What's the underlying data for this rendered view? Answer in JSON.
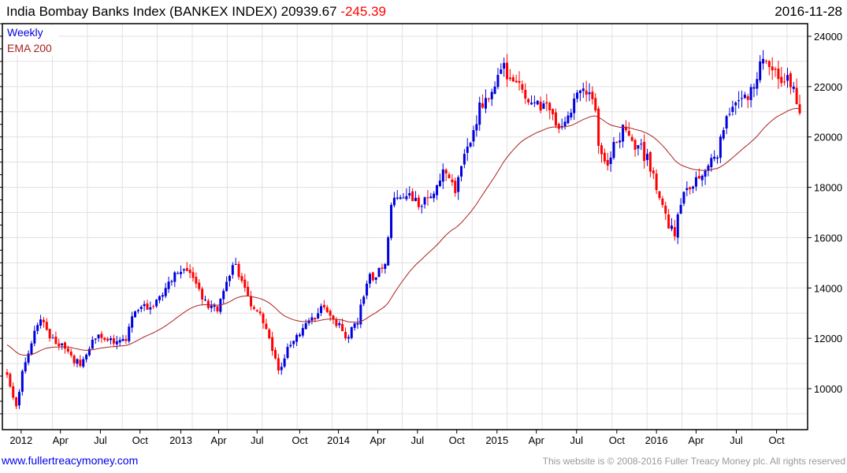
{
  "header": {
    "title": "India Bombay Banks Index (BANKEX INDEX) 20939.67",
    "change": "-245.39",
    "date": "2016-11-28"
  },
  "footer": {
    "site": "www.fullertreacymoney.com",
    "copyright": "This website is © 2008-2016 Fuller Treacy Money plc. All rights reserved"
  },
  "colors": {
    "up": "#0000dd",
    "down": "#ff0000",
    "ema": "#aa2222",
    "grid": "#e0e0e0"
  },
  "chart_data": {
    "type": "candlestick",
    "title": "India Bombay Banks Index (BANKEX INDEX)",
    "frequency_label": "Weekly",
    "legend": [
      {
        "name": "Weekly",
        "color": "#0000dd"
      },
      {
        "name": "EMA 200",
        "color": "#aa2222"
      }
    ],
    "legend_placement": "top-left",
    "ylim": [
      8500,
      24500
    ],
    "yticks": [
      10000,
      12000,
      14000,
      16000,
      18000,
      20000,
      22000,
      24000
    ],
    "xtick_labels": [
      "2012",
      "Apr",
      "Jul",
      "Oct",
      "2013",
      "Apr",
      "Jul",
      "Oct",
      "2014",
      "Apr",
      "Jul",
      "Oct",
      "2015",
      "Apr",
      "Jul",
      "Oct",
      "2016",
      "Apr",
      "Jul",
      "Oct"
    ],
    "xtick_weeks": [
      4.6,
      17.5,
      30.6,
      43.6,
      57,
      69.4,
      82,
      96,
      108.7,
      121.6,
      134.6,
      147.5,
      160.7,
      173.6,
      186.8,
      200,
      213,
      226,
      239.2,
      252.4
    ],
    "total_weeks": 261,
    "ema_period_days": 200,
    "ema_start": 11800,
    "close_keypoints": [
      [
        0,
        10550
      ],
      [
        3,
        9300
      ],
      [
        5,
        10700
      ],
      [
        9,
        12300
      ],
      [
        11,
        12750
      ],
      [
        14,
        12000
      ],
      [
        18,
        11800
      ],
      [
        24,
        10900
      ],
      [
        26,
        11350
      ],
      [
        30,
        12150
      ],
      [
        34,
        12000
      ],
      [
        39,
        11900
      ],
      [
        42,
        13070
      ],
      [
        47,
        13230
      ],
      [
        52,
        14000
      ],
      [
        57,
        14640
      ],
      [
        61,
        14400
      ],
      [
        65,
        13540
      ],
      [
        69,
        13070
      ],
      [
        73,
        14480
      ],
      [
        75,
        14950
      ],
      [
        79,
        13700
      ],
      [
        82,
        13070
      ],
      [
        84,
        12600
      ],
      [
        87,
        11500
      ],
      [
        89,
        10720
      ],
      [
        92,
        11660
      ],
      [
        95,
        12130
      ],
      [
        98,
        12600
      ],
      [
        101,
        12750
      ],
      [
        104,
        13230
      ],
      [
        106,
        12900
      ],
      [
        109,
        12600
      ],
      [
        111,
        12000
      ],
      [
        115,
        12600
      ],
      [
        118,
        14170
      ],
      [
        122,
        14800
      ],
      [
        124,
        14950
      ],
      [
        126,
        17300
      ],
      [
        129,
        17600
      ],
      [
        133,
        17450
      ],
      [
        137,
        17600
      ],
      [
        141,
        18080
      ],
      [
        144,
        18550
      ],
      [
        147,
        17770
      ],
      [
        150,
        19330
      ],
      [
        153,
        20270
      ],
      [
        155,
        21370
      ],
      [
        158,
        21525
      ],
      [
        160,
        22000
      ],
      [
        163,
        22940
      ],
      [
        165,
        22300
      ],
      [
        168,
        22150
      ],
      [
        171,
        21370
      ],
      [
        175,
        21050
      ],
      [
        179,
        20900
      ],
      [
        182,
        20430
      ],
      [
        186,
        21525
      ],
      [
        190,
        21680
      ],
      [
        193,
        21050
      ],
      [
        194,
        19650
      ],
      [
        197,
        18860
      ],
      [
        199,
        19800
      ],
      [
        203,
        20270
      ],
      [
        206,
        19490
      ],
      [
        210,
        19330
      ],
      [
        212,
        18550
      ],
      [
        215,
        17300
      ],
      [
        217,
        16360
      ],
      [
        219,
        16050
      ],
      [
        221,
        17300
      ],
      [
        224,
        17920
      ],
      [
        226,
        18400
      ],
      [
        230,
        18860
      ],
      [
        233,
        19180
      ],
      [
        235,
        20270
      ],
      [
        239,
        21370
      ],
      [
        242,
        21680
      ],
      [
        246,
        22300
      ],
      [
        248,
        23100
      ],
      [
        250,
        22780
      ],
      [
        253,
        22300
      ],
      [
        256,
        22460
      ],
      [
        258,
        22000
      ],
      [
        260,
        20940
      ]
    ],
    "last_close": 20939.67
  }
}
